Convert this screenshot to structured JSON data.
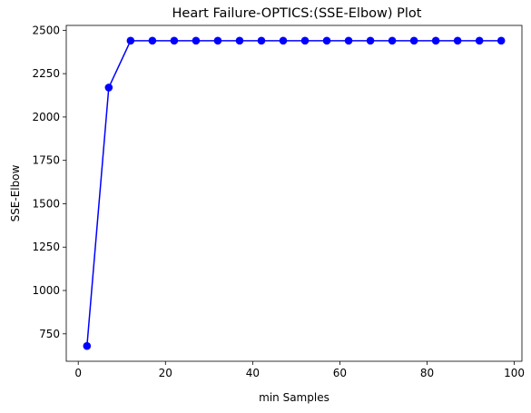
{
  "chart_data": {
    "type": "line",
    "title": "Heart Failure-OPTICS:(SSE-Elbow) Plot",
    "xlabel": "min Samples",
    "ylabel": "SSE-Elbow",
    "xlim": [
      -2.75,
      101.75
    ],
    "ylim": [
      592,
      2528
    ],
    "xticks": [
      0,
      20,
      40,
      60,
      80,
      100
    ],
    "yticks": [
      750,
      1000,
      1250,
      1500,
      1750,
      2000,
      2250,
      2500
    ],
    "grid": false,
    "series": [
      {
        "color": "#0000ff",
        "marker": "circle",
        "x": [
          2,
          7,
          12,
          17,
          22,
          27,
          32,
          37,
          42,
          47,
          52,
          57,
          62,
          67,
          72,
          77,
          82,
          87,
          92,
          97
        ],
        "y": [
          680,
          2170,
          2440,
          2440,
          2440,
          2440,
          2440,
          2440,
          2440,
          2440,
          2440,
          2440,
          2440,
          2440,
          2440,
          2440,
          2440,
          2440,
          2440,
          2440
        ]
      }
    ]
  }
}
